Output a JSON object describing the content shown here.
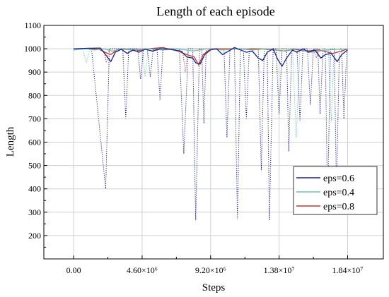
{
  "chart_data": {
    "type": "line",
    "title": "Length of each episode",
    "xlabel": "Steps",
    "ylabel": "Length",
    "xlim": [
      -2000000,
      20800000
    ],
    "ylim": [
      100,
      1100
    ],
    "x_ticks": [
      {
        "value": 0,
        "label": "0.00"
      },
      {
        "value": 4600000,
        "label": "4.60×10⁶"
      },
      {
        "value": 9200000,
        "label": "9.20×10⁶"
      },
      {
        "value": 13800000,
        "label": "1.38×10⁷"
      },
      {
        "value": 18400000,
        "label": "1.84×10⁷"
      }
    ],
    "y_ticks": [
      200,
      300,
      400,
      500,
      600,
      700,
      800,
      900,
      1000,
      1100
    ],
    "grid": true,
    "legend_position": "right-lower",
    "series": [
      {
        "name": "eps=0.6",
        "color": "#1a1f8c",
        "smoothed": [
          [
            0,
            1000
          ],
          [
            1000000,
            1002
          ],
          [
            1800000,
            1003
          ],
          [
            2200000,
            970
          ],
          [
            2500000,
            945
          ],
          [
            2800000,
            985
          ],
          [
            3200000,
            998
          ],
          [
            3600000,
            980
          ],
          [
            4000000,
            995
          ],
          [
            4400000,
            985
          ],
          [
            4800000,
            998
          ],
          [
            5300000,
            990
          ],
          [
            5800000,
            1000
          ],
          [
            6500000,
            998
          ],
          [
            7200000,
            990
          ],
          [
            7600000,
            965
          ],
          [
            8000000,
            960
          ],
          [
            8200000,
            940
          ],
          [
            8500000,
            935
          ],
          [
            8800000,
            975
          ],
          [
            9200000,
            995
          ],
          [
            9600000,
            1000
          ],
          [
            10000000,
            975
          ],
          [
            10400000,
            990
          ],
          [
            10800000,
            1005
          ],
          [
            11200000,
            995
          ],
          [
            11600000,
            985
          ],
          [
            12000000,
            990
          ],
          [
            12400000,
            960
          ],
          [
            12700000,
            950
          ],
          [
            13000000,
            985
          ],
          [
            13400000,
            1000
          ],
          [
            13700000,
            955
          ],
          [
            14000000,
            925
          ],
          [
            14300000,
            960
          ],
          [
            14700000,
            995
          ],
          [
            15000000,
            985
          ],
          [
            15400000,
            1000
          ],
          [
            15800000,
            985
          ],
          [
            16200000,
            995
          ],
          [
            16600000,
            960
          ],
          [
            16900000,
            975
          ],
          [
            17300000,
            980
          ],
          [
            17700000,
            945
          ],
          [
            18000000,
            975
          ],
          [
            18400000,
            995
          ]
        ],
        "raw": [
          [
            1200000,
            1000
          ],
          [
            2150000,
            400
          ],
          [
            2400000,
            1000
          ],
          [
            3300000,
            1000
          ],
          [
            3500000,
            700
          ],
          [
            3700000,
            1000
          ],
          [
            4300000,
            1000
          ],
          [
            4500000,
            870
          ],
          [
            4700000,
            1000
          ],
          [
            4950000,
            1000
          ],
          [
            5150000,
            880
          ],
          [
            5350000,
            1000
          ],
          [
            5600000,
            1000
          ],
          [
            5800000,
            780
          ],
          [
            6000000,
            1000
          ],
          [
            7100000,
            1000
          ],
          [
            7400000,
            550
          ],
          [
            7700000,
            1000
          ],
          [
            8000000,
            1000
          ],
          [
            8200000,
            265
          ],
          [
            8450000,
            1000
          ],
          [
            8600000,
            1000
          ],
          [
            8750000,
            680
          ],
          [
            8900000,
            1000
          ],
          [
            10100000,
            1000
          ],
          [
            10300000,
            620
          ],
          [
            10500000,
            1000
          ],
          [
            10800000,
            1000
          ],
          [
            11000000,
            270
          ],
          [
            11200000,
            1000
          ],
          [
            11400000,
            1000
          ],
          [
            11600000,
            700
          ],
          [
            11800000,
            1000
          ],
          [
            12400000,
            1000
          ],
          [
            12600000,
            480
          ],
          [
            12800000,
            1000
          ],
          [
            13000000,
            1000
          ],
          [
            13150000,
            265
          ],
          [
            13400000,
            1000
          ],
          [
            13600000,
            1000
          ],
          [
            13800000,
            720
          ],
          [
            14000000,
            1000
          ],
          [
            14300000,
            1000
          ],
          [
            14450000,
            560
          ],
          [
            14650000,
            1000
          ],
          [
            15000000,
            1000
          ],
          [
            15200000,
            690
          ],
          [
            15400000,
            1000
          ],
          [
            15700000,
            1000
          ],
          [
            15900000,
            760
          ],
          [
            16100000,
            1000
          ],
          [
            16400000,
            1000
          ],
          [
            16550000,
            720
          ],
          [
            16750000,
            1000
          ],
          [
            16900000,
            1000
          ],
          [
            17050000,
            330
          ],
          [
            17250000,
            1000
          ],
          [
            17500000,
            1000
          ],
          [
            17650000,
            400
          ],
          [
            17850000,
            1000
          ],
          [
            18000000,
            1000
          ],
          [
            18150000,
            700
          ],
          [
            18350000,
            1000
          ]
        ]
      },
      {
        "name": "eps=0.4",
        "color": "#6fc3ae",
        "smoothed": [
          [
            0,
            995
          ],
          [
            800000,
            1000
          ],
          [
            1400000,
            995
          ],
          [
            2000000,
            1000
          ],
          [
            2600000,
            990
          ],
          [
            3200000,
            998
          ],
          [
            4000000,
            995
          ],
          [
            5000000,
            1000
          ],
          [
            6000000,
            995
          ],
          [
            7000000,
            1000
          ],
          [
            8000000,
            990
          ],
          [
            9000000,
            1000
          ],
          [
            10000000,
            995
          ],
          [
            11000000,
            1000
          ],
          [
            12000000,
            995
          ],
          [
            13000000,
            1000
          ],
          [
            14000000,
            990
          ],
          [
            15000000,
            1000
          ],
          [
            16000000,
            985
          ],
          [
            17000000,
            995
          ],
          [
            18400000,
            1000
          ]
        ],
        "raw": [
          [
            600000,
            1000
          ],
          [
            850000,
            940
          ],
          [
            1100000,
            1000
          ],
          [
            4600000,
            1000
          ],
          [
            4800000,
            880
          ],
          [
            5000000,
            1000
          ],
          [
            14700000,
            1000
          ],
          [
            14950000,
            620
          ],
          [
            15200000,
            1000
          ],
          [
            17100000,
            1000
          ],
          [
            17300000,
            690
          ],
          [
            17500000,
            1000
          ]
        ]
      },
      {
        "name": "eps=0.8",
        "color": "#c0392b",
        "smoothed": [
          [
            0,
            1000
          ],
          [
            1000000,
            1000
          ],
          [
            1700000,
            998
          ],
          [
            2100000,
            985
          ],
          [
            2500000,
            975
          ],
          [
            2900000,
            995
          ],
          [
            3400000,
            1000
          ],
          [
            4200000,
            990
          ],
          [
            5000000,
            1000
          ],
          [
            6000000,
            1005
          ],
          [
            7000000,
            990
          ],
          [
            7600000,
            975
          ],
          [
            8100000,
            965
          ],
          [
            8400000,
            930
          ],
          [
            8700000,
            975
          ],
          [
            9200000,
            1000
          ],
          [
            10500000,
            1000
          ],
          [
            11500000,
            998
          ],
          [
            12500000,
            1000
          ],
          [
            13500000,
            995
          ],
          [
            14200000,
            990
          ],
          [
            14800000,
            998
          ],
          [
            15600000,
            990
          ],
          [
            16500000,
            995
          ],
          [
            17400000,
            980
          ],
          [
            18000000,
            990
          ],
          [
            18400000,
            1000
          ]
        ],
        "raw": [
          [
            2000000,
            1000
          ],
          [
            2200000,
            940
          ],
          [
            2400000,
            1000
          ],
          [
            7300000,
            1000
          ],
          [
            7500000,
            900
          ],
          [
            7700000,
            1000
          ],
          [
            16100000,
            1000
          ],
          [
            16300000,
            960
          ],
          [
            16500000,
            1000
          ]
        ]
      }
    ]
  }
}
